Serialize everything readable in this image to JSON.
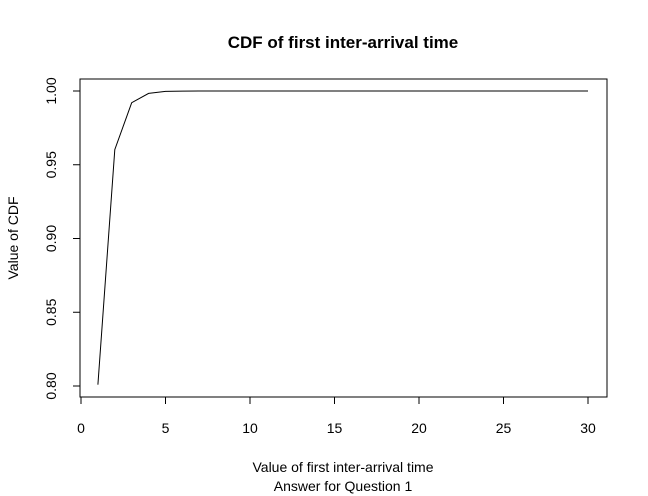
{
  "chart_data": {
    "type": "line",
    "title": "CDF of first inter-arrival time",
    "xlabel": "Value of first inter-arrival time",
    "sublabel": "Answer for Question 1",
    "ylabel": "Value of CDF",
    "xlim": [
      0,
      30
    ],
    "ylim": [
      0.8,
      1.0
    ],
    "xticks": [
      0,
      5,
      10,
      15,
      20,
      25,
      30
    ],
    "yticks": [
      0.8,
      0.85,
      0.9,
      0.95,
      1.0
    ],
    "xtick_labels": [
      "0",
      "5",
      "10",
      "15",
      "20",
      "25",
      "30"
    ],
    "ytick_labels": [
      "0.80",
      "0.85",
      "0.90",
      "0.95",
      "1.00"
    ],
    "grid": false,
    "series": [
      {
        "x": [
          1,
          2,
          3,
          4,
          5,
          6,
          7,
          8,
          9,
          10,
          11,
          12,
          13,
          14,
          15,
          16,
          17,
          18,
          19,
          20,
          21,
          22,
          23,
          24,
          25,
          26,
          27,
          28,
          29,
          30
        ],
        "y": [
          0.8009,
          0.9603,
          0.9921,
          0.9984,
          0.9997,
          0.9999,
          1.0,
          1.0,
          1.0,
          1.0,
          1.0,
          1.0,
          1.0,
          1.0,
          1.0,
          1.0,
          1.0,
          1.0,
          1.0,
          1.0,
          1.0,
          1.0,
          1.0,
          1.0,
          1.0,
          1.0,
          1.0,
          1.0,
          1.0,
          1.0
        ],
        "color": "#000000"
      }
    ]
  }
}
